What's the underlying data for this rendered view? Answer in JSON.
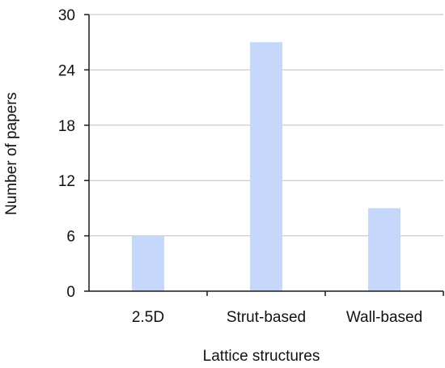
{
  "chart_data": {
    "type": "bar",
    "title": "",
    "xlabel": "Lattice structures",
    "ylabel": "Number of papers",
    "categories": [
      "2.5D",
      "Strut-based",
      "Wall-based"
    ],
    "values": [
      6,
      27,
      9
    ],
    "ylim": [
      0,
      30
    ],
    "yticks": [
      0,
      6,
      12,
      18,
      24,
      30
    ],
    "grid": "horizontal",
    "legend": "none",
    "colors": {
      "bar": "#c5d7fb",
      "grid": "#bfbfbf",
      "axis": "#1a1a1a"
    }
  }
}
